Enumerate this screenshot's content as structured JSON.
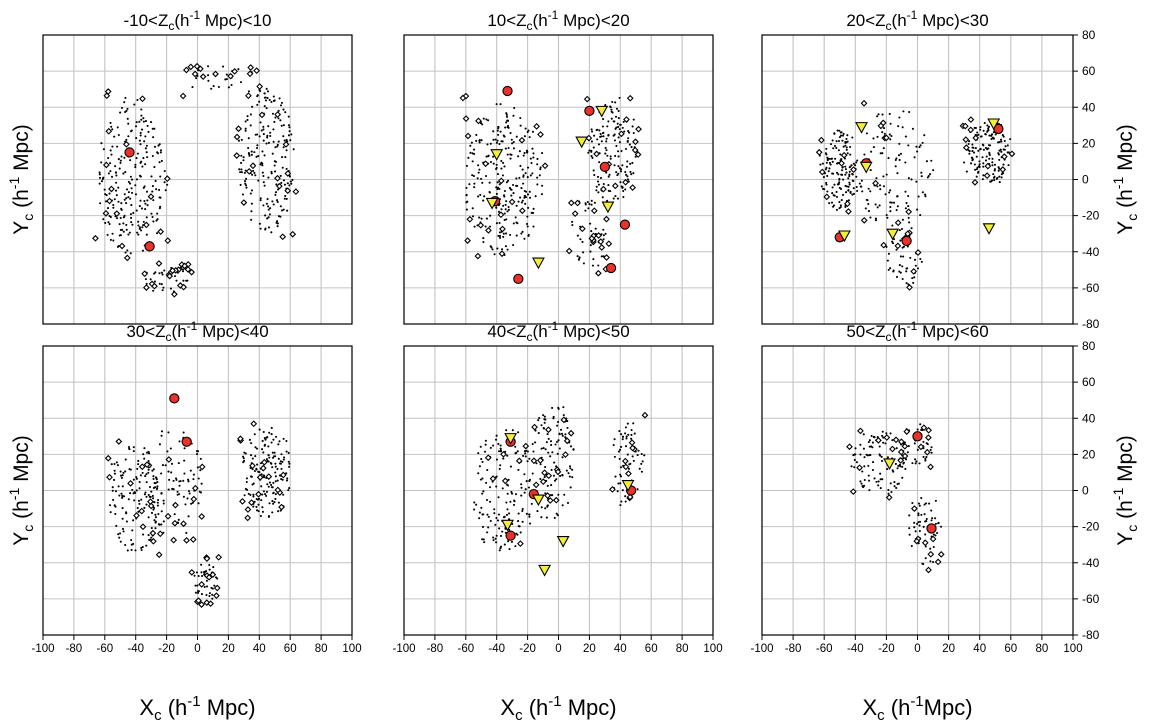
{
  "chart_data": [
    {
      "type": "scatter",
      "title": "-10<Z_c(h^-1 Mpc)<10",
      "title_parts": {
        "pre": "-10<Z",
        "sub": "c",
        "mid": "(h",
        "sup": "-1",
        "post": " Mpc)<10"
      },
      "xlim": [
        -100,
        100
      ],
      "ylim": [
        -80,
        80
      ],
      "grid": true,
      "series": [
        {
          "name": "circles",
          "points": [
            [
              -44,
              15
            ],
            [
              -31,
              -37
            ]
          ]
        },
        {
          "name": "triangles",
          "points": []
        }
      ]
    },
    {
      "type": "scatter",
      "title": "10<Z_c(h^-1 Mpc)<20",
      "title_parts": {
        "pre": "10<Z",
        "sub": "c",
        "mid": "(h",
        "sup": "-1",
        "post": " Mpc)<20"
      },
      "xlim": [
        -100,
        100
      ],
      "ylim": [
        -80,
        80
      ],
      "grid": true,
      "series": [
        {
          "name": "circles",
          "points": [
            [
              -33,
              49
            ],
            [
              20,
              38
            ],
            [
              30,
              7
            ],
            [
              -41,
              -12
            ],
            [
              43,
              -25
            ],
            [
              -26,
              -55
            ],
            [
              34,
              -49
            ]
          ]
        },
        {
          "name": "triangles",
          "points": [
            [
              -40,
              14
            ],
            [
              15,
              21
            ],
            [
              28,
              38
            ],
            [
              -43,
              -13
            ],
            [
              32,
              -15
            ],
            [
              -13,
              -46
            ]
          ]
        }
      ]
    },
    {
      "type": "scatter",
      "title": "20<Z_c(h^-1 Mpc)<30",
      "title_parts": {
        "pre": "20<Z",
        "sub": "c",
        "mid": "(h",
        "sup": "-1",
        "post": " Mpc)<30"
      },
      "xlim": [
        -100,
        100
      ],
      "ylim": [
        -80,
        80
      ],
      "grid": true,
      "series": [
        {
          "name": "circles",
          "points": [
            [
              -33,
              9
            ],
            [
              52,
              28
            ],
            [
              -50,
              -32
            ],
            [
              -7,
              -34
            ]
          ]
        },
        {
          "name": "triangles",
          "points": [
            [
              -36,
              29
            ],
            [
              -33,
              7
            ],
            [
              49,
              31
            ],
            [
              -47,
              -31
            ],
            [
              -16,
              -30
            ],
            [
              46,
              -27
            ]
          ]
        }
      ]
    },
    {
      "type": "scatter",
      "title": "30<Z_c(h^-1 Mpc)<40",
      "title_parts": {
        "pre": "30<Z",
        "sub": "c",
        "mid": "(h",
        "sup": "-1",
        "post": " Mpc)<40"
      },
      "xlim": [
        -100,
        100
      ],
      "ylim": [
        -80,
        80
      ],
      "grid": true,
      "series": [
        {
          "name": "circles",
          "points": [
            [
              -15,
              51
            ],
            [
              -7,
              27
            ]
          ]
        },
        {
          "name": "triangles",
          "points": []
        }
      ]
    },
    {
      "type": "scatter",
      "title": "40<Z_c(h^-1 Mpc)<50",
      "title_parts": {
        "pre": "40<Z",
        "sub": "c",
        "mid": "(h",
        "sup": "-1",
        "post": " Mpc)<50"
      },
      "xlim": [
        -100,
        100
      ],
      "ylim": [
        -80,
        80
      ],
      "grid": true,
      "series": [
        {
          "name": "circles",
          "points": [
            [
              -31,
              27
            ],
            [
              -16,
              -2
            ],
            [
              47,
              0
            ],
            [
              -31,
              -25
            ]
          ]
        },
        {
          "name": "triangles",
          "points": [
            [
              -31,
              29
            ],
            [
              -13,
              -5
            ],
            [
              45,
              3
            ],
            [
              -33,
              -19
            ],
            [
              3,
              -28
            ],
            [
              -9,
              -44
            ]
          ]
        }
      ]
    },
    {
      "type": "scatter",
      "title": "50<Z_c(h^-1 Mpc)<60",
      "title_parts": {
        "pre": "50<Z",
        "sub": "c",
        "mid": "(h",
        "sup": "-1",
        "post": " Mpc)<60"
      },
      "xlim": [
        -100,
        100
      ],
      "ylim": [
        -80,
        80
      ],
      "grid": true,
      "series": [
        {
          "name": "circles",
          "points": [
            [
              0,
              30
            ],
            [
              9,
              -21
            ]
          ]
        },
        {
          "name": "triangles",
          "points": [
            [
              -18,
              15
            ]
          ]
        }
      ]
    }
  ],
  "axes": {
    "xlabel": {
      "pre": "X",
      "sub": "c",
      "mid": " (h",
      "sup": "-1",
      "post": " Mpc)"
    },
    "xlabel_alt": {
      "pre": "X",
      "sub": "c",
      "mid": " (h",
      "sup": "-1",
      "post": "Mpc)"
    },
    "ylabel": {
      "pre": "Y",
      "sub": "c",
      "mid": " (h",
      "sup": "-1",
      "post": " Mpc)"
    },
    "x_ticks": [
      "-100",
      "-80",
      "-60",
      "-40",
      "-20",
      "0",
      "20",
      "40",
      "60",
      "80",
      "100"
    ],
    "y_ticks": [
      "80",
      "60",
      "40",
      "20",
      "0",
      "-20",
      "-40",
      "-60",
      "-80"
    ]
  },
  "colors": {
    "circle": "#e8322b",
    "triangle": "#f3ee3a",
    "grid": "#c4c4c4"
  }
}
